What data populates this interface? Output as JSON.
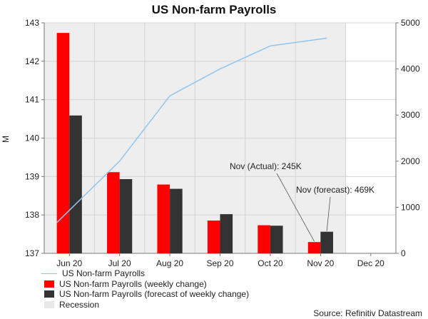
{
  "chart_data": {
    "type": "bar",
    "title": "US Non-farm Payrolls",
    "ylabel": "M",
    "y2label": "",
    "categories": [
      "Jun 20",
      "Jul 20",
      "Aug 20",
      "Sep 20",
      "Oct 20",
      "Nov 20",
      "Dec 20"
    ],
    "ylim": [
      137,
      143
    ],
    "y2lim": [
      0,
      5000
    ],
    "yticks": [
      137,
      138,
      139,
      140,
      141,
      142,
      143
    ],
    "y2ticks": [
      0,
      1000,
      2000,
      3000,
      4000,
      5000
    ],
    "series": [
      {
        "name": "US Non-farm Payrolls",
        "type": "line",
        "axis": "left",
        "color": "#8ec5f0",
        "x": [
          "Jun 20",
          "Jul 20",
          "Aug 20",
          "Sep 20",
          "Oct 20",
          "Nov 20"
        ],
        "values": [
          137.8,
          139.4,
          141.1,
          141.8,
          142.4,
          142.6
        ]
      },
      {
        "name": "US Non-farm Payrolls (weekly change)",
        "type": "bar",
        "axis": "right",
        "color": "#ff0000",
        "x": [
          "Jun 20",
          "Jul 20",
          "Aug 20",
          "Sep 20",
          "Oct 20",
          "Nov 20"
        ],
        "values": [
          4781,
          1761,
          1493,
          711,
          610,
          245
        ]
      },
      {
        "name": "US Non-farm Payrolls (forecast of weekly change)",
        "type": "bar",
        "axis": "right",
        "color": "#333333",
        "x": [
          "Jun 20",
          "Jul 20",
          "Aug 20",
          "Sep 20",
          "Oct 20",
          "Nov 20"
        ],
        "values": [
          2990,
          1610,
          1400,
          850,
          600,
          469
        ]
      }
    ],
    "recession_shading": {
      "label": "Recession",
      "from": "Jun 20",
      "to": "Dec 20",
      "color": "#eeeeee"
    },
    "annotations": [
      {
        "text": "Nov (Actual): 245K",
        "series": 1,
        "category": "Nov 20"
      },
      {
        "text": "Nov (forecast): 469K",
        "series": 2,
        "category": "Nov 20"
      }
    ],
    "legend_position": "bottom-left",
    "grid": true,
    "source": "Source: Refinitiv Datastream"
  }
}
